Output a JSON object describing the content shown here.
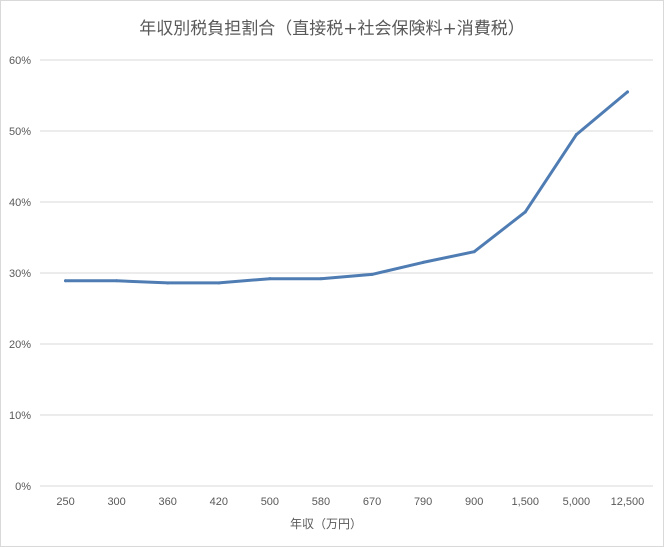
{
  "chart_data": {
    "type": "line",
    "title": "年収別税負担割合（直接税+社会保険料+消費税）",
    "xlabel": "年収（万円）",
    "ylabel": "",
    "categories": [
      "250",
      "300",
      "360",
      "420",
      "500",
      "580",
      "670",
      "790",
      "900",
      "1,500",
      "5,000",
      "12,500"
    ],
    "series": [
      {
        "values": [
          28.9,
          28.9,
          28.6,
          28.6,
          29.2,
          29.2,
          29.8,
          31.5,
          33.0,
          38.6,
          49.5,
          55.5
        ]
      }
    ],
    "y_ticks": [
      "0%",
      "10%",
      "20%",
      "30%",
      "40%",
      "50%",
      "60%"
    ],
    "ylim": [
      0,
      60
    ],
    "grid": true,
    "legend": "none",
    "colors": {
      "line": "#4f7db3",
      "grid": "#d9d9d9",
      "text": "#595959"
    }
  }
}
